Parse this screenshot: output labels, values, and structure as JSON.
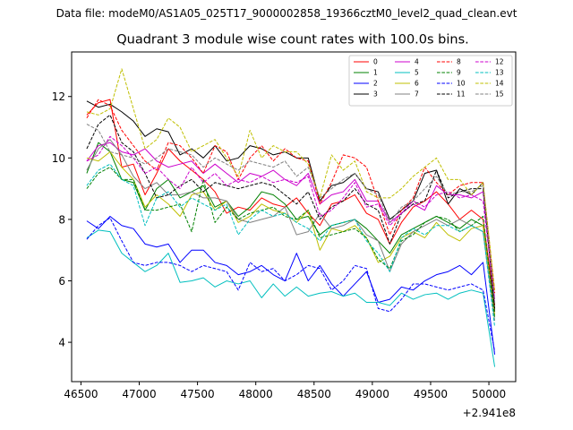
{
  "chart_data": {
    "type": "line",
    "suptitle": "Data file: modeM0/AS1A05_025T17_9000002858_19366cztM0_level2_quad_clean.evt",
    "title": "Quadrant 3 module wise count rates with 100.0s bins.",
    "xlabel": "",
    "ylabel": "",
    "x_offset_label": "+2.941e8",
    "xlim": [
      46420,
      50230
    ],
    "ylim": [
      2.72,
      13.45
    ],
    "xticks": [
      46500,
      47000,
      47500,
      48000,
      48500,
      49000,
      49500,
      50000
    ],
    "yticks": [
      4,
      6,
      8,
      10,
      12
    ],
    "x": [
      46550,
      46650,
      46750,
      46850,
      46950,
      47050,
      47150,
      47250,
      47350,
      47450,
      47550,
      47650,
      47750,
      47850,
      47950,
      48050,
      48150,
      48250,
      48350,
      48450,
      48550,
      48650,
      48750,
      48850,
      48950,
      49050,
      49150,
      49250,
      49350,
      49450,
      49550,
      49650,
      49750,
      49850,
      49950,
      50050
    ],
    "legend_position": "top-right",
    "series": [
      {
        "name": "0",
        "color": "#ff0000",
        "dash": "solid",
        "values": [
          11.4,
          11.8,
          11.9,
          9.7,
          9.8,
          8.8,
          9.5,
          10.3,
          9.9,
          9.6,
          9.3,
          8.9,
          8.2,
          8.4,
          8.3,
          8.7,
          8.5,
          8.4,
          8.7,
          8.2,
          7.8,
          8.5,
          8.6,
          8.8,
          8.2,
          8.0,
          7.2,
          7.9,
          8.4,
          8.6,
          8.9,
          8.5,
          8.0,
          8.3,
          8.0,
          5.2
        ]
      },
      {
        "name": "1",
        "color": "#008000",
        "dash": "solid",
        "values": [
          9.5,
          10.5,
          10.2,
          9.3,
          9.2,
          8.3,
          9.0,
          9.3,
          8.7,
          8.9,
          9.1,
          8.4,
          8.6,
          8.1,
          8.4,
          8.9,
          8.8,
          8.5,
          8.0,
          8.1,
          7.5,
          7.8,
          7.9,
          8.0,
          7.7,
          7.3,
          6.9,
          7.5,
          7.7,
          7.9,
          8.1,
          7.9,
          7.7,
          8.0,
          7.8,
          5.0
        ]
      },
      {
        "name": "2",
        "color": "#0000ff",
        "dash": "solid",
        "values": [
          7.95,
          7.7,
          8.1,
          7.8,
          7.7,
          7.2,
          7.1,
          7.2,
          6.6,
          7.0,
          7.0,
          6.6,
          6.5,
          6.2,
          6.3,
          6.5,
          6.2,
          6.0,
          6.9,
          6.0,
          6.5,
          5.9,
          5.5,
          5.9,
          6.3,
          5.3,
          5.4,
          5.8,
          5.7,
          6.0,
          6.2,
          6.3,
          6.5,
          6.2,
          6.6,
          3.6
        ]
      },
      {
        "name": "3",
        "color": "#000000",
        "dash": "solid",
        "values": [
          11.85,
          11.65,
          11.75,
          11.5,
          11.2,
          10.7,
          10.95,
          10.85,
          10.1,
          10.3,
          10.0,
          10.4,
          9.9,
          10.0,
          10.4,
          10.3,
          10.1,
          10.2,
          10.0,
          10.0,
          8.6,
          9.1,
          9.2,
          9.5,
          9.0,
          8.9,
          8.0,
          8.3,
          8.6,
          9.5,
          9.6,
          8.5,
          9.0,
          8.8,
          9.2,
          5.0
        ]
      },
      {
        "name": "4",
        "color": "#cc00cc",
        "dash": "solid",
        "values": [
          9.9,
          10.4,
          10.5,
          10.2,
          10.1,
          10.3,
          9.9,
          9.7,
          9.8,
          9.9,
          9.5,
          9.8,
          9.5,
          9.2,
          9.5,
          9.4,
          9.6,
          9.3,
          9.1,
          9.5,
          8.5,
          8.8,
          8.9,
          9.3,
          8.6,
          8.6,
          7.9,
          8.2,
          8.5,
          8.3,
          9.1,
          8.8,
          8.8,
          8.7,
          8.9,
          5.4
        ]
      },
      {
        "name": "5",
        "color": "#00bfbf",
        "dash": "solid",
        "values": [
          7.4,
          7.65,
          7.6,
          6.9,
          6.6,
          6.3,
          6.5,
          6.9,
          5.95,
          6.0,
          6.1,
          5.8,
          6.0,
          5.9,
          6.0,
          5.45,
          5.9,
          5.5,
          5.8,
          5.5,
          5.6,
          5.65,
          5.5,
          5.6,
          5.3,
          5.3,
          5.2,
          5.6,
          5.4,
          5.55,
          5.6,
          5.4,
          5.6,
          5.7,
          5.6,
          3.2
        ]
      },
      {
        "name": "6",
        "color": "#bfbf00",
        "dash": "solid",
        "values": [
          10.0,
          9.9,
          10.2,
          9.7,
          9.3,
          8.4,
          8.8,
          8.5,
          8.1,
          8.8,
          8.9,
          8.3,
          8.6,
          7.9,
          8.1,
          8.5,
          8.3,
          8.2,
          7.9,
          8.3,
          7.0,
          7.7,
          7.6,
          7.8,
          7.4,
          6.6,
          6.8,
          7.4,
          7.6,
          7.4,
          7.9,
          7.5,
          7.3,
          7.7,
          7.8,
          4.9
        ]
      },
      {
        "name": "7",
        "color": "#808080",
        "dash": "solid",
        "values": [
          9.6,
          10.3,
          10.6,
          10.1,
          9.4,
          9.0,
          9.2,
          8.8,
          8.8,
          8.9,
          8.7,
          8.7,
          8.6,
          8.0,
          7.9,
          8.0,
          8.1,
          8.4,
          7.5,
          7.6,
          8.2,
          7.7,
          7.8,
          8.0,
          7.5,
          7.3,
          6.3,
          7.2,
          7.6,
          7.8,
          8.0,
          7.8,
          8.0,
          7.8,
          7.6,
          4.7
        ]
      },
      {
        "name": "8",
        "color": "#ff0000",
        "dash": "dashed",
        "values": [
          11.3,
          11.9,
          11.7,
          10.9,
          10.4,
          9.9,
          9.6,
          10.5,
          10.4,
          10.0,
          9.5,
          10.4,
          10.2,
          9.3,
          10.0,
          10.4,
          9.9,
          10.3,
          10.0,
          9.9,
          8.5,
          9.2,
          10.1,
          10.0,
          9.7,
          8.6,
          7.5,
          8.3,
          8.7,
          9.7,
          9.2,
          8.8,
          9.1,
          9.2,
          9.2,
          5.6
        ]
      },
      {
        "name": "9",
        "color": "#008000",
        "dash": "dashed",
        "values": [
          9.0,
          9.5,
          9.7,
          9.3,
          9.3,
          8.3,
          8.3,
          8.4,
          8.5,
          7.6,
          9.3,
          7.9,
          8.4,
          8.0,
          8.2,
          8.3,
          8.4,
          8.1,
          8.0,
          8.3,
          7.4,
          7.5,
          7.6,
          7.7,
          7.4,
          6.7,
          6.4,
          7.3,
          7.5,
          7.9,
          8.1,
          8.0,
          7.6,
          7.8,
          8.1,
          4.8
        ]
      },
      {
        "name": "10",
        "color": "#0000ff",
        "dash": "dashed",
        "values": [
          7.35,
          7.8,
          8.05,
          7.3,
          6.6,
          6.5,
          6.6,
          6.6,
          6.5,
          6.3,
          6.5,
          6.4,
          6.3,
          5.7,
          6.6,
          6.3,
          6.4,
          6.0,
          6.2,
          6.5,
          6.4,
          5.7,
          6.0,
          6.5,
          6.4,
          5.1,
          5.0,
          5.4,
          5.9,
          5.9,
          5.8,
          5.7,
          5.8,
          5.9,
          5.7,
          3.7
        ]
      },
      {
        "name": "11",
        "color": "#000000",
        "dash": "dashed",
        "values": [
          10.3,
          11.1,
          11.4,
          10.5,
          10.2,
          9.5,
          8.7,
          8.8,
          9.1,
          9.3,
          8.9,
          9.2,
          9.1,
          9.0,
          9.1,
          9.2,
          9.1,
          8.8,
          8.5,
          8.9,
          8.0,
          8.4,
          8.6,
          9.0,
          8.5,
          8.3,
          7.2,
          8.2,
          8.5,
          8.6,
          9.6,
          8.7,
          8.9,
          9.0,
          9.0,
          5.1
        ]
      },
      {
        "name": "12",
        "color": "#cc00cc",
        "dash": "dashed",
        "values": [
          9.9,
          10.1,
          10.7,
          10.4,
          10.0,
          9.5,
          9.7,
          9.3,
          9.0,
          9.7,
          9.2,
          9.5,
          9.1,
          9.3,
          9.2,
          9.4,
          9.2,
          9.3,
          9.2,
          9.4,
          8.1,
          8.3,
          8.7,
          9.2,
          8.4,
          8.5,
          7.8,
          8.2,
          8.6,
          8.4,
          8.8,
          8.9,
          8.7,
          8.8,
          8.6,
          5.3
        ]
      },
      {
        "name": "13",
        "color": "#00bfbf",
        "dash": "dashed",
        "values": [
          9.1,
          9.6,
          9.8,
          9.3,
          9.1,
          7.8,
          8.7,
          8.9,
          8.4,
          8.7,
          8.5,
          8.3,
          8.5,
          7.5,
          8.0,
          8.3,
          8.1,
          8.2,
          7.9,
          7.7,
          7.3,
          7.8,
          7.9,
          8.0,
          7.3,
          6.9,
          6.3,
          7.4,
          7.7,
          7.5,
          7.8,
          7.8,
          7.6,
          7.8,
          7.6,
          4.5
        ]
      },
      {
        "name": "14",
        "color": "#bfbf00",
        "dash": "dashed",
        "values": [
          11.5,
          11.4,
          11.6,
          12.9,
          11.6,
          10.3,
          10.6,
          11.3,
          11.0,
          10.2,
          10.4,
          10.6,
          10.0,
          9.4,
          10.9,
          10.0,
          10.4,
          10.2,
          10.2,
          9.8,
          8.7,
          10.1,
          9.6,
          9.9,
          8.9,
          8.7,
          8.7,
          9.0,
          9.4,
          9.7,
          10.0,
          9.3,
          9.3,
          8.8,
          9.2,
          5.7
        ]
      },
      {
        "name": "15",
        "color": "#808080",
        "dash": "dashed",
        "values": [
          11.1,
          10.9,
          10.2,
          10.1,
          10.0,
          9.8,
          10.0,
          10.3,
          10.2,
          10.1,
          9.7,
          10.0,
          9.8,
          9.6,
          9.9,
          9.8,
          9.7,
          9.9,
          9.4,
          9.7,
          8.7,
          9.0,
          9.3,
          9.5,
          9.0,
          8.8,
          7.9,
          8.4,
          8.6,
          9.0,
          9.4,
          8.8,
          8.9,
          8.9,
          9.1,
          5.3
        ]
      }
    ]
  }
}
